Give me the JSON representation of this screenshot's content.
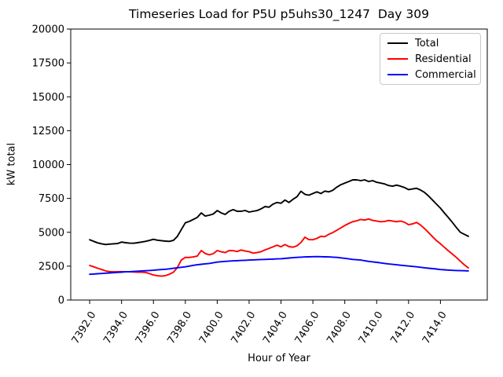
{
  "figure": {
    "background": "#ffffff"
  },
  "chart_data": {
    "type": "line",
    "title": "Timeseries Load for P5U p5uhs30_1247  Day 309",
    "xlabel": "Hour of Year",
    "ylabel": "kW total",
    "xlim": [
      7390.8125,
      7416.9375
    ],
    "ylim": [
      0,
      20000
    ],
    "x_ticks": [
      7392,
      7394,
      7396,
      7398,
      7400,
      7402,
      7404,
      7406,
      7408,
      7410,
      7412,
      7414
    ],
    "x_tick_labels": [
      "7392.0",
      "7394.0",
      "7396.0",
      "7398.0",
      "7400.0",
      "7402.0",
      "7404.0",
      "7406.0",
      "7408.0",
      "7410.0",
      "7412.0",
      "7414.0"
    ],
    "y_ticks": [
      0,
      2500,
      5000,
      7500,
      10000,
      12500,
      15000,
      17500,
      20000
    ],
    "y_tick_labels": [
      "0",
      "2500",
      "5000",
      "7500",
      "10000",
      "12500",
      "15000",
      "17500",
      "20000"
    ],
    "grid": false,
    "legend_position": "upper right",
    "x": [
      7392,
      7392.25,
      7392.5,
      7392.75,
      7393,
      7393.25,
      7393.5,
      7393.75,
      7394,
      7394.25,
      7394.5,
      7394.75,
      7395,
      7395.25,
      7395.5,
      7395.75,
      7396,
      7396.25,
      7396.5,
      7396.75,
      7397,
      7397.25,
      7397.5,
      7397.75,
      7398,
      7398.25,
      7398.5,
      7398.75,
      7399,
      7399.25,
      7399.5,
      7399.75,
      7400,
      7400.25,
      7400.5,
      7400.75,
      7401,
      7401.25,
      7401.5,
      7401.75,
      7402,
      7402.25,
      7402.5,
      7402.75,
      7403,
      7403.25,
      7403.5,
      7403.75,
      7404,
      7404.25,
      7404.5,
      7404.75,
      7405,
      7405.25,
      7405.5,
      7405.75,
      7406,
      7406.25,
      7406.5,
      7406.75,
      7407,
      7407.25,
      7407.5,
      7407.75,
      7408,
      7408.25,
      7408.5,
      7408.75,
      7409,
      7409.25,
      7409.5,
      7409.75,
      7410,
      7410.25,
      7410.5,
      7410.75,
      7411,
      7411.25,
      7411.5,
      7411.75,
      7412,
      7412.25,
      7412.5,
      7412.75,
      7413,
      7413.25,
      7413.5,
      7413.75,
      7414,
      7414.25,
      7414.5,
      7414.75,
      7415,
      7415.25,
      7415.5,
      7415.75
    ],
    "series": [
      {
        "name": "Total",
        "color": "#000000",
        "values": [
          4450,
          4330,
          4220,
          4150,
          4100,
          4130,
          4150,
          4170,
          4280,
          4230,
          4200,
          4190,
          4230,
          4280,
          4330,
          4400,
          4480,
          4420,
          4380,
          4350,
          4330,
          4400,
          4700,
          5200,
          5700,
          5800,
          5950,
          6100,
          6430,
          6200,
          6260,
          6350,
          6600,
          6430,
          6320,
          6550,
          6670,
          6550,
          6550,
          6610,
          6490,
          6550,
          6600,
          6730,
          6900,
          6850,
          7080,
          7200,
          7140,
          7380,
          7200,
          7440,
          7620,
          8030,
          7800,
          7740,
          7860,
          7980,
          7860,
          8040,
          7980,
          8100,
          8330,
          8510,
          8630,
          8750,
          8870,
          8870,
          8810,
          8870,
          8750,
          8810,
          8690,
          8630,
          8570,
          8450,
          8400,
          8480,
          8400,
          8300,
          8150,
          8200,
          8250,
          8120,
          7950,
          7680,
          7380,
          7080,
          6780,
          6420,
          6080,
          5730,
          5350,
          5000,
          4850,
          4700
        ]
      },
      {
        "name": "Residential",
        "color": "#ff0000",
        "values": [
          2550,
          2450,
          2350,
          2250,
          2150,
          2100,
          2080,
          2090,
          2100,
          2090,
          2080,
          2070,
          2060,
          2050,
          2040,
          1950,
          1850,
          1790,
          1760,
          1800,
          1900,
          2050,
          2400,
          2950,
          3150,
          3140,
          3180,
          3240,
          3650,
          3430,
          3340,
          3420,
          3650,
          3560,
          3500,
          3650,
          3640,
          3580,
          3690,
          3620,
          3570,
          3460,
          3500,
          3570,
          3690,
          3810,
          3930,
          4050,
          3930,
          4100,
          3940,
          3900,
          4000,
          4250,
          4640,
          4460,
          4450,
          4550,
          4700,
          4680,
          4850,
          4980,
          5150,
          5320,
          5500,
          5650,
          5780,
          5850,
          5950,
          5900,
          5980,
          5880,
          5830,
          5780,
          5800,
          5870,
          5830,
          5780,
          5830,
          5740,
          5560,
          5620,
          5730,
          5540,
          5280,
          4980,
          4680,
          4390,
          4150,
          3890,
          3630,
          3390,
          3140,
          2860,
          2600,
          2370
        ]
      },
      {
        "name": "Commercial",
        "color": "#0000ff",
        "values": [
          1900,
          1920,
          1940,
          1960,
          1980,
          2000,
          2020,
          2040,
          2060,
          2080,
          2090,
          2110,
          2130,
          2150,
          2165,
          2180,
          2200,
          2225,
          2250,
          2275,
          2300,
          2340,
          2380,
          2415,
          2450,
          2505,
          2560,
          2600,
          2640,
          2670,
          2700,
          2750,
          2800,
          2830,
          2855,
          2875,
          2890,
          2905,
          2920,
          2935,
          2950,
          2965,
          2975,
          2990,
          3000,
          3010,
          3020,
          3035,
          3050,
          3075,
          3100,
          3125,
          3150,
          3165,
          3180,
          3190,
          3200,
          3205,
          3200,
          3190,
          3180,
          3165,
          3150,
          3115,
          3080,
          3040,
          3000,
          2975,
          2950,
          2900,
          2850,
          2815,
          2780,
          2740,
          2700,
          2660,
          2630,
          2600,
          2570,
          2540,
          2510,
          2480,
          2450,
          2415,
          2380,
          2350,
          2320,
          2290,
          2250,
          2230,
          2210,
          2190,
          2180,
          2170,
          2160,
          2150
        ]
      }
    ]
  }
}
